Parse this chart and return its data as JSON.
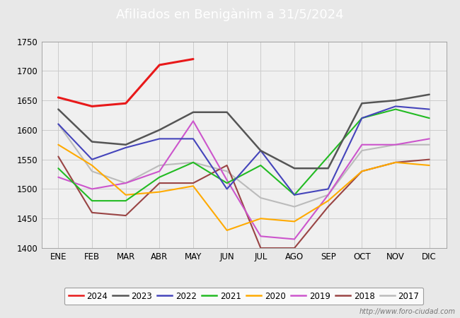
{
  "title": "Afiliados en Benigànim a 31/5/2024",
  "title_bg_color": "#4a90d9",
  "title_text_color": "#ffffff",
  "ylim": [
    1400,
    1750
  ],
  "yticks": [
    1400,
    1450,
    1500,
    1550,
    1600,
    1650,
    1700,
    1750
  ],
  "months": [
    "ENE",
    "FEB",
    "MAR",
    "ABR",
    "MAY",
    "JUN",
    "JUL",
    "AGO",
    "SEP",
    "OCT",
    "NOV",
    "DIC"
  ],
  "watermark": "http://www.foro-ciudad.com",
  "series": {
    "2024": {
      "color": "#e8191a",
      "linewidth": 2.2,
      "linestyle": "-",
      "data": [
        1655,
        1640,
        1645,
        1710,
        1720,
        null,
        null,
        null,
        null,
        null,
        null,
        null
      ]
    },
    "2023": {
      "color": "#555555",
      "linewidth": 1.8,
      "linestyle": "-",
      "data": [
        1635,
        1580,
        1575,
        1600,
        1630,
        1630,
        1565,
        1535,
        1535,
        1645,
        1650,
        1660
      ]
    },
    "2022": {
      "color": "#4444bb",
      "linewidth": 1.5,
      "linestyle": "-",
      "data": [
        1610,
        1550,
        1570,
        1585,
        1585,
        1500,
        1565,
        1490,
        1500,
        1620,
        1640,
        1635
      ]
    },
    "2021": {
      "color": "#22bb22",
      "linewidth": 1.5,
      "linestyle": "-",
      "data": [
        1535,
        1480,
        1480,
        1520,
        1545,
        1510,
        1540,
        1490,
        1555,
        1620,
        1635,
        1620
      ]
    },
    "2020": {
      "color": "#ffaa00",
      "linewidth": 1.5,
      "linestyle": "-",
      "data": [
        1575,
        1540,
        1490,
        1495,
        1505,
        1430,
        1450,
        1445,
        1480,
        1530,
        1545,
        1540
      ]
    },
    "2019": {
      "color": "#cc55cc",
      "linewidth": 1.5,
      "linestyle": "-",
      "data": [
        1520,
        1500,
        1510,
        1530,
        1615,
        1515,
        1420,
        1415,
        1490,
        1575,
        1575,
        1585
      ]
    },
    "2018": {
      "color": "#994444",
      "linewidth": 1.5,
      "linestyle": "-",
      "data": [
        1555,
        1460,
        1455,
        1510,
        1510,
        1540,
        1400,
        1400,
        1470,
        1530,
        1545,
        1550
      ]
    },
    "2017": {
      "color": "#bbbbbb",
      "linewidth": 1.5,
      "linestyle": "-",
      "data": [
        1610,
        1530,
        1510,
        1540,
        1545,
        1530,
        1485,
        1470,
        1490,
        1565,
        1575,
        1575
      ]
    }
  },
  "legend_order": [
    "2024",
    "2023",
    "2022",
    "2021",
    "2020",
    "2019",
    "2018",
    "2017"
  ],
  "grid_color": "#cccccc",
  "bg_color": "#e8e8e8",
  "plot_bg_color": "#f0f0f0"
}
